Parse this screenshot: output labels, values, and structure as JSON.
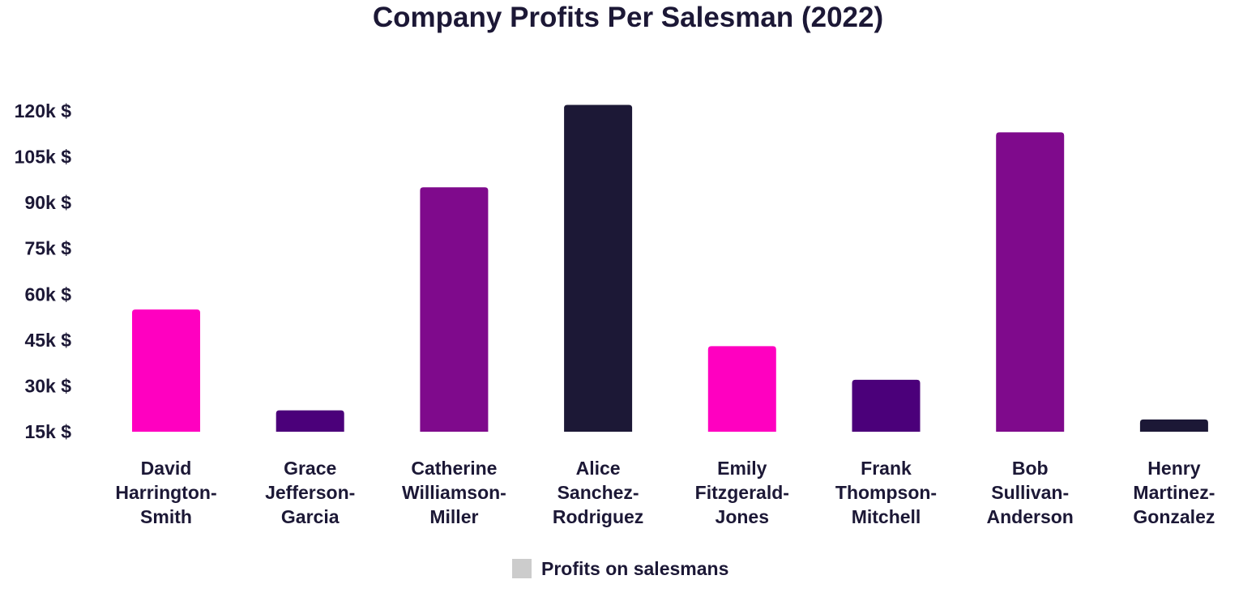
{
  "chart_data": {
    "type": "bar",
    "title": "Company Profits Per Salesman (2022)",
    "xlabel": "",
    "ylabel": "",
    "categories": [
      [
        "David",
        "Harrington-",
        "Smith"
      ],
      [
        "Grace",
        "Jefferson-",
        "Garcia"
      ],
      [
        "Catherine",
        "Williamson-",
        "Miller"
      ],
      [
        "Alice",
        "Sanchez-",
        "Rodriguez"
      ],
      [
        "Emily",
        "Fitzgerald-",
        "Jones"
      ],
      [
        "Frank",
        "Thompson-",
        "Mitchell"
      ],
      [
        "Bob",
        "Sullivan-",
        "Anderson"
      ],
      [
        "Henry",
        "Martinez-",
        "Gonzalez"
      ]
    ],
    "series": [
      {
        "name": "Profits on salesmans",
        "values": [
          55000,
          22000,
          95000,
          122000,
          43000,
          32000,
          113000,
          19000
        ]
      }
    ],
    "bar_colors": [
      "#ff00c0",
      "#4b007a",
      "#7f0a8c",
      "#1c1836",
      "#ff00c0",
      "#4b007a",
      "#7f0a8c",
      "#1c1836"
    ],
    "legend_color": "#cccccc",
    "yticks": [
      15000,
      30000,
      45000,
      60000,
      75000,
      90000,
      105000,
      120000
    ],
    "ytick_labels": [
      "15k $",
      "30k $",
      "45k $",
      "60k $",
      "75k $",
      "90k $",
      "105k $",
      "120k $"
    ],
    "ylim": [
      15000,
      120000
    ],
    "grid": false,
    "legend_position": "bottom-center"
  }
}
